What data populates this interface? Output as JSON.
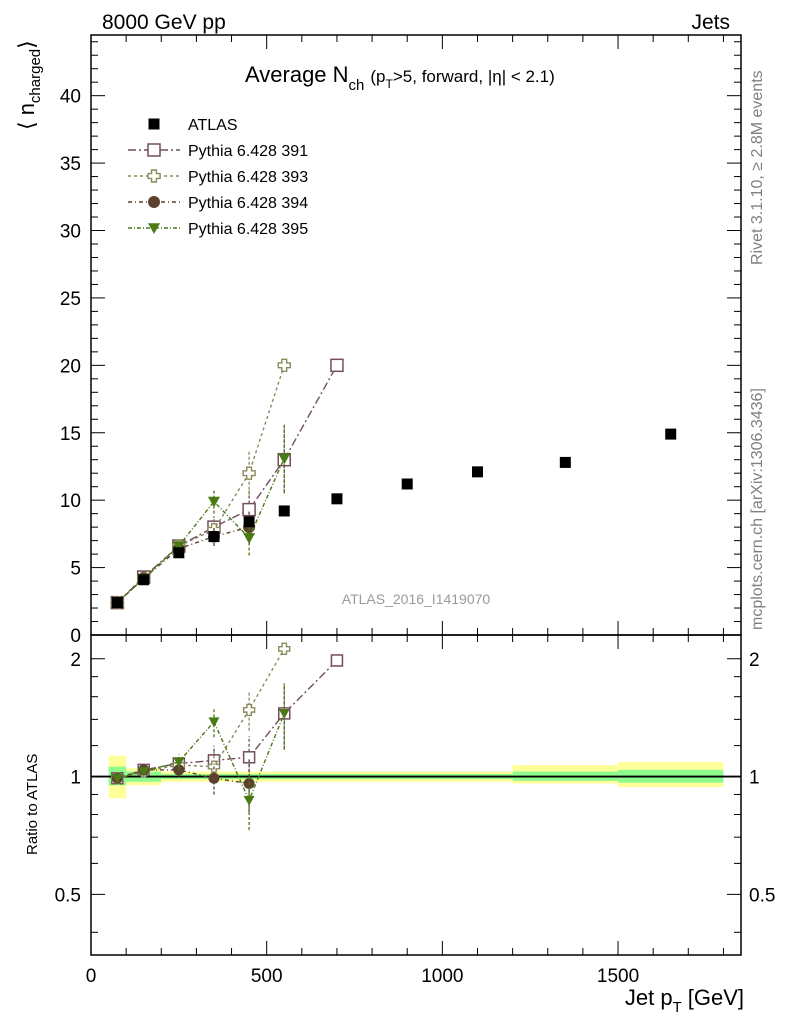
{
  "header": {
    "left": "8000 GeV pp",
    "right": "Jets"
  },
  "side_labels": {
    "rivet": "Rivet 3.1.10, ≥ 2.8M events",
    "mcplots": "mcplots.cern.ch [arXiv:1306.3436]"
  },
  "chart_data": {
    "type": "scatter",
    "title": "Average N",
    "title_sub": "ch",
    "title_suffix": "(p",
    "title_suffix_sub": "T",
    "title_suffix_rest": ">5, forward, |η| < 2.1)",
    "watermark": "ATLAS_2016_I1419070",
    "ylabel": "⟨ n",
    "ylabel_sub": "charged",
    "ylabel_close": "⟩",
    "xlabel": "Jet p",
    "xlabel_sub": "T",
    "xlabel_unit": "[GeV]",
    "ratio_ylabel": "Ratio to ATLAS",
    "xlim": [
      0,
      1850
    ],
    "ylim": [
      0,
      44.5
    ],
    "ratio_ylim": [
      0.35,
      2.3
    ],
    "x_ticks": [
      0,
      500,
      1000,
      1500
    ],
    "x_tick_labels": [
      "0",
      "500",
      "1000",
      "1500"
    ],
    "y_ticks": [
      0,
      5,
      10,
      15,
      20,
      25,
      30,
      35,
      40
    ],
    "y_tick_labels": [
      "0",
      "5",
      "10",
      "15",
      "20",
      "25",
      "30",
      "35",
      "40"
    ],
    "ratio_ticks": [
      0.5,
      1,
      2
    ],
    "ratio_tick_labels": [
      "0.5",
      "1",
      "2"
    ],
    "data": {
      "name": "ATLAS",
      "color": "#000000",
      "points": [
        {
          "x": 75,
          "xlo": 50,
          "xhi": 100,
          "y": 2.4
        },
        {
          "x": 150,
          "xlo": 100,
          "xhi": 200,
          "y": 4.1
        },
        {
          "x": 250,
          "xlo": 200,
          "xhi": 300,
          "y": 6.1
        },
        {
          "x": 350,
          "xlo": 300,
          "xhi": 400,
          "y": 7.3
        },
        {
          "x": 450,
          "xlo": 400,
          "xhi": 500,
          "y": 8.4
        },
        {
          "x": 550,
          "xlo": 500,
          "xhi": 600,
          "y": 9.2
        },
        {
          "x": 700,
          "xlo": 600,
          "xhi": 800,
          "y": 10.1
        },
        {
          "x": 900,
          "xlo": 800,
          "xhi": 1000,
          "y": 11.2
        },
        {
          "x": 1100,
          "xlo": 1000,
          "xhi": 1200,
          "y": 12.1
        },
        {
          "x": 1350,
          "xlo": 1200,
          "xhi": 1500,
          "y": 12.8
        },
        {
          "x": 1650,
          "xlo": 1500,
          "xhi": 1800,
          "y": 14.9
        }
      ],
      "bands": [
        {
          "xlo": 50,
          "xhi": 100,
          "g_lo": 0.95,
          "g_hi": 1.06,
          "y_lo": 0.88,
          "y_hi": 1.13
        },
        {
          "xlo": 100,
          "xhi": 200,
          "g_lo": 0.97,
          "g_hi": 1.03,
          "y_lo": 0.95,
          "y_hi": 1.05
        },
        {
          "xlo": 200,
          "xhi": 1200,
          "g_lo": 0.985,
          "g_hi": 1.015,
          "y_lo": 0.97,
          "y_hi": 1.03
        },
        {
          "xlo": 1200,
          "xhi": 1500,
          "g_lo": 0.975,
          "g_hi": 1.03,
          "y_lo": 0.96,
          "y_hi": 1.07
        },
        {
          "xlo": 1500,
          "xhi": 1800,
          "g_lo": 0.965,
          "g_hi": 1.04,
          "y_lo": 0.94,
          "y_hi": 1.09
        }
      ]
    },
    "series": [
      {
        "name": "Pythia 6.428 391",
        "color": "#734d5e",
        "marker": "open-square",
        "dash": "8,3,2,3",
        "points": [
          {
            "x": 75,
            "y": 2.4,
            "err": 0.1,
            "r": 0.99,
            "rerr": 0.02
          },
          {
            "x": 150,
            "y": 4.3,
            "err": 0.1,
            "r": 1.04,
            "rerr": 0.02
          },
          {
            "x": 250,
            "y": 6.6,
            "err": 0.3,
            "r": 1.08,
            "rerr": 0.04
          },
          {
            "x": 350,
            "y": 8.0,
            "err": 0.8,
            "r": 1.1,
            "rerr": 0.1
          },
          {
            "x": 450,
            "y": 9.3,
            "err": 1.4,
            "r": 1.12,
            "rerr": 0.15
          },
          {
            "x": 550,
            "y": 13.0,
            "err": 2.5,
            "r": 1.45,
            "rerr": 0.28
          },
          {
            "x": 700,
            "y": 20.0,
            "err": 0.0,
            "r": 1.98,
            "rerr": 0.0
          }
        ]
      },
      {
        "name": "Pythia 6.428 393",
        "color": "#8a8a5c",
        "marker": "open-cross",
        "dash": "3,3",
        "points": [
          {
            "x": 75,
            "y": 2.4,
            "err": 0.1,
            "r": 0.99,
            "rerr": 0.02
          },
          {
            "x": 150,
            "y": 4.2,
            "err": 0.1,
            "r": 1.03,
            "rerr": 0.02
          },
          {
            "x": 250,
            "y": 6.6,
            "err": 0.3,
            "r": 1.07,
            "rerr": 0.04
          },
          {
            "x": 350,
            "y": 7.8,
            "err": 0.8,
            "r": 1.06,
            "rerr": 0.1
          },
          {
            "x": 450,
            "y": 12.0,
            "err": 1.6,
            "r": 1.48,
            "rerr": 0.17
          },
          {
            "x": 550,
            "y": 20.0,
            "err": 0.0,
            "r": 2.12,
            "rerr": 0.0
          }
        ]
      },
      {
        "name": "Pythia 6.428 394",
        "color": "#5c4030",
        "marker": "filled-circle",
        "dash": "4,3,1,3",
        "points": [
          {
            "x": 75,
            "y": 2.4,
            "err": 0.1,
            "r": 0.99,
            "rerr": 0.02
          },
          {
            "x": 150,
            "y": 4.2,
            "err": 0.1,
            "r": 1.04,
            "rerr": 0.02
          },
          {
            "x": 250,
            "y": 6.4,
            "err": 0.3,
            "r": 1.04,
            "rerr": 0.04
          },
          {
            "x": 350,
            "y": 7.3,
            "err": 0.7,
            "r": 0.99,
            "rerr": 0.09
          },
          {
            "x": 450,
            "y": 8.0,
            "err": 1.3,
            "r": 0.96,
            "rerr": 0.15
          }
        ]
      },
      {
        "name": "Pythia 6.428 395",
        "color": "#4a7a14",
        "marker": "filled-triangle-down",
        "dash": "4,2,1,2",
        "points": [
          {
            "x": 75,
            "y": 2.4,
            "err": 0.1,
            "r": 0.99,
            "rerr": 0.02
          },
          {
            "x": 150,
            "y": 4.2,
            "err": 0.1,
            "r": 1.03,
            "rerr": 0.02
          },
          {
            "x": 250,
            "y": 6.6,
            "err": 0.4,
            "r": 1.09,
            "rerr": 0.05
          },
          {
            "x": 350,
            "y": 9.9,
            "err": 0.9,
            "r": 1.38,
            "rerr": 0.12
          },
          {
            "x": 450,
            "y": 7.2,
            "err": 1.3,
            "r": 0.87,
            "rerr": 0.14
          },
          {
            "x": 550,
            "y": 13.1,
            "err": 2.5,
            "r": 1.45,
            "rerr": 0.27
          }
        ]
      }
    ]
  }
}
